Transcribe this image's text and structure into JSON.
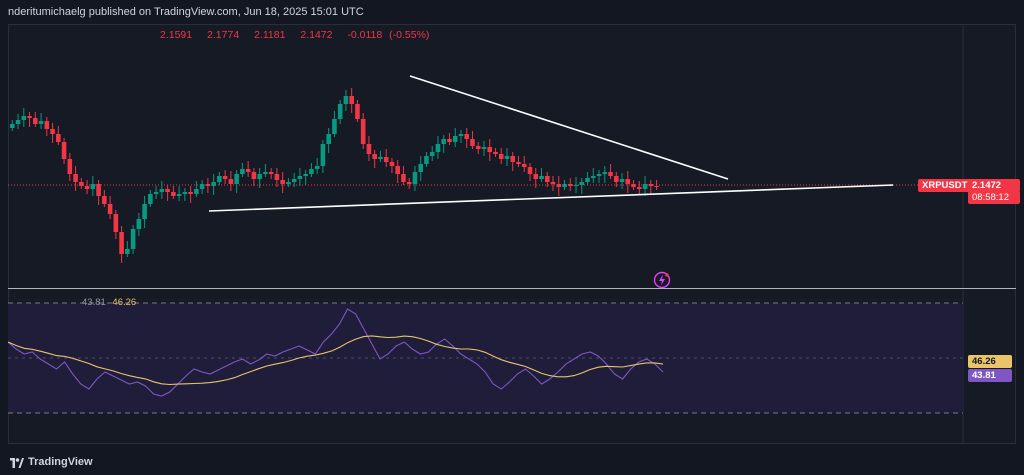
{
  "header": {
    "publisher_text": "nderitumichaelg published on TradingView.com, Jun 18, 2025 15:01 UTC"
  },
  "ohlc": {
    "open": "2.1591",
    "high": "2.1774",
    "low": "2.1181",
    "close": "2.1472",
    "change": "-0.0118 (-0.55%)"
  },
  "price_axis": {
    "symbol": "XRPUSDT",
    "last_price": "2.1472",
    "countdown": "08:58:12"
  },
  "rsi": {
    "rsi_value": "43.81",
    "ma_value": "46.26"
  },
  "footer": {
    "brand": "TradingView"
  },
  "colors": {
    "up": "#089981",
    "down": "#f23645",
    "rsi_line": "#7e57c2",
    "rsi_ma": "#e9c46a",
    "trendline": "#ffffff"
  },
  "icons": {
    "alert": "lightning-alert-icon",
    "logo": "tradingview-logo-icon"
  }
}
